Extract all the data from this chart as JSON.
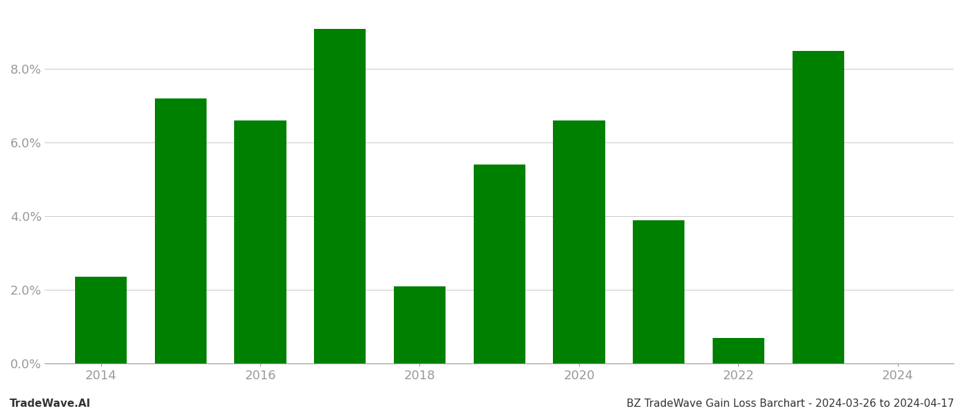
{
  "years": [
    2014,
    2015,
    2016,
    2017,
    2018,
    2019,
    2020,
    2021,
    2022,
    2023
  ],
  "values": [
    0.0235,
    0.072,
    0.066,
    0.091,
    0.021,
    0.054,
    0.066,
    0.039,
    0.007,
    0.085
  ],
  "bar_color": "#008000",
  "background_color": "#ffffff",
  "grid_color": "#cccccc",
  "ylim": [
    0,
    0.096
  ],
  "yticks": [
    0.0,
    0.02,
    0.04,
    0.06,
    0.08
  ],
  "xticks": [
    2014,
    2016,
    2018,
    2020,
    2022,
    2024
  ],
  "xlim_left": 2013.3,
  "xlim_right": 2024.7,
  "footer_left": "TradeWave.AI",
  "footer_right": "BZ TradeWave Gain Loss Barchart - 2024-03-26 to 2024-04-17",
  "footer_fontsize": 11,
  "tick_label_color": "#999999",
  "tick_label_fontsize": 13,
  "bar_width": 0.65
}
